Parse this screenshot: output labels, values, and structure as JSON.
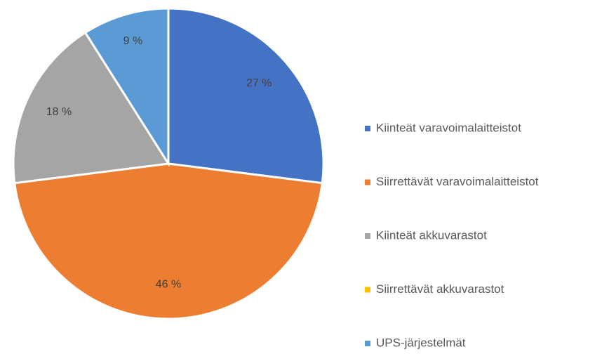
{
  "chart_data": {
    "type": "pie",
    "categories": [
      "Kiinteät varavoimalaitteistot",
      "Siirrettävät varavoimalaitteistot",
      "Kiinteät akkuvarastot",
      "Siirrettävät akkuvarastot",
      "UPS-järjestelmät"
    ],
    "values": [
      27,
      46,
      18,
      0,
      9
    ],
    "value_labels": [
      "27 %",
      "46 %",
      "18 %",
      null,
      "9 %"
    ],
    "colors": [
      "#4472c4",
      "#ed7d31",
      "#a5a5a5",
      "#ffc000",
      "#5b9bd5"
    ],
    "legend": "right"
  }
}
